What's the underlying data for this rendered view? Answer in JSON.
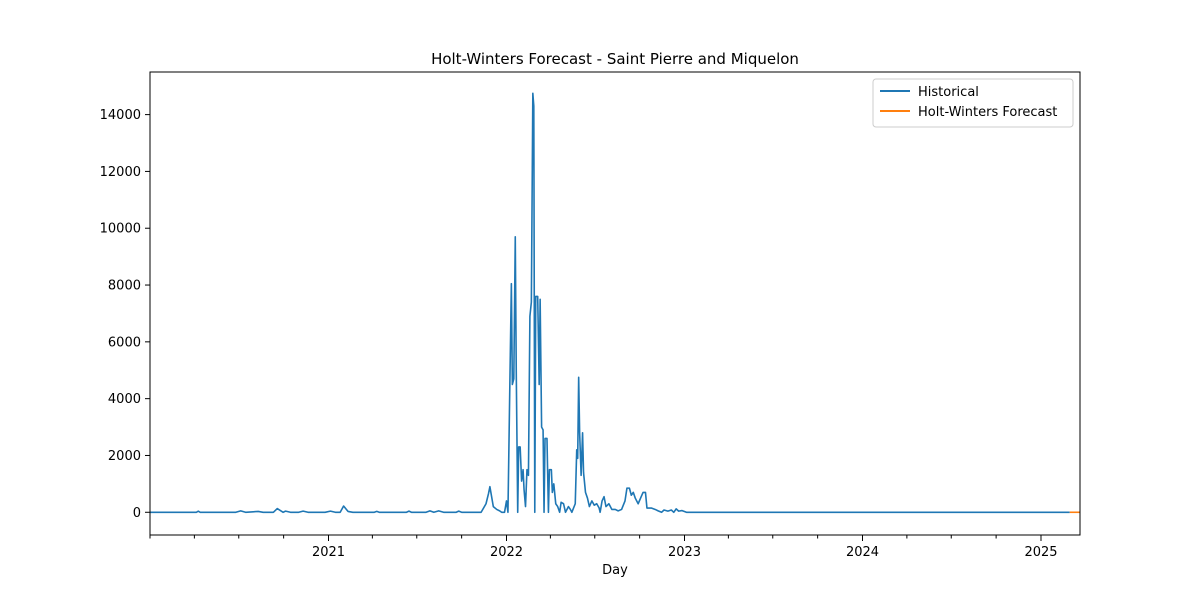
{
  "chart_data": {
    "type": "line",
    "title": "Holt-Winters Forecast - Saint Pierre and Miquelon",
    "xlabel": "Day",
    "ylabel": "",
    "xlim": [
      "2020-01-01",
      "2025-03-22"
    ],
    "ylim": [
      -800,
      15500
    ],
    "x_ticks": [
      "2021",
      "2022",
      "2023",
      "2024",
      "2025"
    ],
    "y_ticks": [
      0,
      2000,
      4000,
      6000,
      8000,
      10000,
      12000,
      14000
    ],
    "grid": false,
    "legend_position": "top-right",
    "series": [
      {
        "name": "Historical",
        "color": "#1f77b4",
        "points": [
          [
            "2020-01-01",
            0
          ],
          [
            "2020-04-05",
            0
          ],
          [
            "2020-04-09",
            40
          ],
          [
            "2020-04-13",
            0
          ],
          [
            "2020-06-25",
            0
          ],
          [
            "2020-07-05",
            50
          ],
          [
            "2020-07-15",
            0
          ],
          [
            "2020-08-10",
            30
          ],
          [
            "2020-08-20",
            0
          ],
          [
            "2020-09-10",
            0
          ],
          [
            "2020-09-18",
            130
          ],
          [
            "2020-09-30",
            0
          ],
          [
            "2020-10-05",
            40
          ],
          [
            "2020-10-15",
            0
          ],
          [
            "2020-11-01",
            0
          ],
          [
            "2020-11-10",
            40
          ],
          [
            "2020-11-20",
            0
          ],
          [
            "2020-12-25",
            0
          ],
          [
            "2021-01-05",
            40
          ],
          [
            "2021-01-15",
            0
          ],
          [
            "2021-01-25",
            0
          ],
          [
            "2021-02-01",
            220
          ],
          [
            "2021-02-10",
            30
          ],
          [
            "2021-02-20",
            0
          ],
          [
            "2021-04-05",
            0
          ],
          [
            "2021-04-10",
            30
          ],
          [
            "2021-04-15",
            0
          ],
          [
            "2021-06-10",
            0
          ],
          [
            "2021-06-15",
            40
          ],
          [
            "2021-06-20",
            0
          ],
          [
            "2021-07-20",
            0
          ],
          [
            "2021-07-28",
            50
          ],
          [
            "2021-08-05",
            0
          ],
          [
            "2021-08-15",
            50
          ],
          [
            "2021-08-25",
            0
          ],
          [
            "2021-09-20",
            0
          ],
          [
            "2021-09-25",
            40
          ],
          [
            "2021-10-01",
            0
          ],
          [
            "2021-10-15",
            0
          ],
          [
            "2021-11-10",
            0
          ],
          [
            "2021-11-20",
            300
          ],
          [
            "2021-11-25",
            650
          ],
          [
            "2021-11-28",
            900
          ],
          [
            "2021-12-01",
            600
          ],
          [
            "2021-12-05",
            200
          ],
          [
            "2021-12-12",
            100
          ],
          [
            "2021-12-18",
            50
          ],
          [
            "2021-12-22",
            0
          ],
          [
            "2021-12-28",
            0
          ],
          [
            "2022-01-01",
            400
          ],
          [
            "2022-01-04",
            0
          ],
          [
            "2022-01-07",
            3500
          ],
          [
            "2022-01-11",
            8050
          ],
          [
            "2022-01-13",
            4500
          ],
          [
            "2022-01-16",
            4700
          ],
          [
            "2022-01-19",
            9700
          ],
          [
            "2022-01-21",
            5000
          ],
          [
            "2022-01-24",
            0
          ],
          [
            "2022-01-26",
            2300
          ],
          [
            "2022-01-29",
            2300
          ],
          [
            "2022-02-01",
            1100
          ],
          [
            "2022-02-04",
            1500
          ],
          [
            "2022-02-06",
            800
          ],
          [
            "2022-02-09",
            200
          ],
          [
            "2022-02-12",
            1500
          ],
          [
            "2022-02-15",
            1300
          ],
          [
            "2022-02-18",
            6900
          ],
          [
            "2022-02-21",
            7400
          ],
          [
            "2022-02-24",
            14750
          ],
          [
            "2022-02-26",
            14300
          ],
          [
            "2022-02-28",
            0
          ],
          [
            "2022-03-02",
            7600
          ],
          [
            "2022-03-06",
            7600
          ],
          [
            "2022-03-09",
            4500
          ],
          [
            "2022-03-11",
            7500
          ],
          [
            "2022-03-14",
            3000
          ],
          [
            "2022-03-17",
            2900
          ],
          [
            "2022-03-19",
            0
          ],
          [
            "2022-03-21",
            2600
          ],
          [
            "2022-03-25",
            2600
          ],
          [
            "2022-03-28",
            0
          ],
          [
            "2022-03-30",
            1500
          ],
          [
            "2022-04-03",
            1500
          ],
          [
            "2022-04-05",
            700
          ],
          [
            "2022-04-08",
            1000
          ],
          [
            "2022-04-12",
            300
          ],
          [
            "2022-04-16",
            200
          ],
          [
            "2022-04-20",
            0
          ],
          [
            "2022-04-23",
            350
          ],
          [
            "2022-04-28",
            300
          ],
          [
            "2022-05-02",
            0
          ],
          [
            "2022-05-08",
            200
          ],
          [
            "2022-05-12",
            100
          ],
          [
            "2022-05-15",
            0
          ],
          [
            "2022-05-22",
            300
          ],
          [
            "2022-05-25",
            2200
          ],
          [
            "2022-05-27",
            1900
          ],
          [
            "2022-05-29",
            4750
          ],
          [
            "2022-05-31",
            2800
          ],
          [
            "2022-06-03",
            1300
          ],
          [
            "2022-06-06",
            2800
          ],
          [
            "2022-06-08",
            1400
          ],
          [
            "2022-06-12",
            700
          ],
          [
            "2022-06-16",
            500
          ],
          [
            "2022-06-20",
            200
          ],
          [
            "2022-06-25",
            400
          ],
          [
            "2022-06-30",
            250
          ],
          [
            "2022-07-05",
            300
          ],
          [
            "2022-07-10",
            150
          ],
          [
            "2022-07-12",
            0
          ],
          [
            "2022-07-16",
            400
          ],
          [
            "2022-07-20",
            550
          ],
          [
            "2022-07-24",
            200
          ],
          [
            "2022-07-30",
            300
          ],
          [
            "2022-08-05",
            100
          ],
          [
            "2022-08-12",
            100
          ],
          [
            "2022-08-18",
            50
          ],
          [
            "2022-08-25",
            100
          ],
          [
            "2022-09-01",
            400
          ],
          [
            "2022-09-05",
            850
          ],
          [
            "2022-09-10",
            850
          ],
          [
            "2022-09-14",
            600
          ],
          [
            "2022-09-18",
            700
          ],
          [
            "2022-09-22",
            500
          ],
          [
            "2022-09-28",
            300
          ],
          [
            "2022-10-03",
            500
          ],
          [
            "2022-10-08",
            700
          ],
          [
            "2022-10-13",
            700
          ],
          [
            "2022-10-16",
            150
          ],
          [
            "2022-10-25",
            150
          ],
          [
            "2022-11-02",
            100
          ],
          [
            "2022-11-08",
            50
          ],
          [
            "2022-11-15",
            0
          ],
          [
            "2022-11-20",
            80
          ],
          [
            "2022-11-28",
            40
          ],
          [
            "2022-12-05",
            80
          ],
          [
            "2022-12-10",
            0
          ],
          [
            "2022-12-15",
            120
          ],
          [
            "2022-12-20",
            40
          ],
          [
            "2022-12-27",
            60
          ],
          [
            "2023-01-05",
            0
          ],
          [
            "2025-03-01",
            0
          ]
        ]
      },
      {
        "name": "Holt-Winters Forecast",
        "color": "#ff7f0e",
        "points": [
          [
            "2025-03-01",
            0
          ],
          [
            "2025-03-22",
            0
          ]
        ]
      }
    ]
  }
}
